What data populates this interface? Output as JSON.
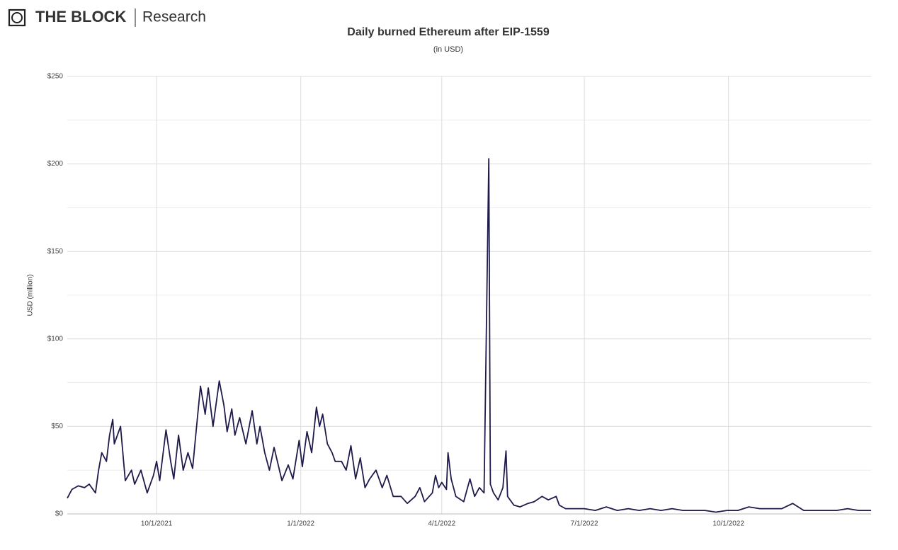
{
  "brand": {
    "name": "THE BLOCK",
    "section": "Research"
  },
  "chart_data": {
    "type": "line",
    "title": "Daily burned Ethereum after EIP-1559",
    "subtitle": "(in USD)",
    "y_label": "USD (million)",
    "color": "#1e1b4b",
    "grid": true,
    "xlim": [
      "2021-08-05",
      "2022-12-31"
    ],
    "xticks": [
      {
        "value": "2021-10-01",
        "label": "10/1/2021"
      },
      {
        "value": "2022-01-01",
        "label": "1/1/2022"
      },
      {
        "value": "2022-04-01",
        "label": "4/1/2022"
      },
      {
        "value": "2022-07-01",
        "label": "7/1/2022"
      },
      {
        "value": "2022-10-01",
        "label": "10/1/2022"
      }
    ],
    "ylim": [
      0,
      250
    ],
    "yticks": [
      {
        "value": 0,
        "label": "$0"
      },
      {
        "value": 50,
        "label": "$50"
      },
      {
        "value": 100,
        "label": "$100"
      },
      {
        "value": 150,
        "label": "$150"
      },
      {
        "value": 200,
        "label": "$200"
      },
      {
        "value": 250,
        "label": "$250"
      }
    ],
    "x": [
      "2021-08-05",
      "2021-08-08",
      "2021-08-12",
      "2021-08-16",
      "2021-08-19",
      "2021-08-23",
      "2021-08-25",
      "2021-08-27",
      "2021-08-30",
      "2021-09-01",
      "2021-09-03",
      "2021-09-04",
      "2021-09-08",
      "2021-09-11",
      "2021-09-15",
      "2021-09-17",
      "2021-09-21",
      "2021-09-25",
      "2021-09-29",
      "2021-10-01",
      "2021-10-03",
      "2021-10-07",
      "2021-10-10",
      "2021-10-12",
      "2021-10-15",
      "2021-10-18",
      "2021-10-21",
      "2021-10-24",
      "2021-10-26",
      "2021-10-29",
      "2021-11-01",
      "2021-11-03",
      "2021-11-06",
      "2021-11-10",
      "2021-11-13",
      "2021-11-15",
      "2021-11-18",
      "2021-11-20",
      "2021-11-23",
      "2021-11-27",
      "2021-12-01",
      "2021-12-04",
      "2021-12-06",
      "2021-12-09",
      "2021-12-12",
      "2021-12-15",
      "2021-12-20",
      "2021-12-24",
      "2021-12-27",
      "2021-12-31",
      "2022-01-02",
      "2022-01-05",
      "2022-01-08",
      "2022-01-11",
      "2022-01-13",
      "2022-01-15",
      "2022-01-18",
      "2022-01-21",
      "2022-01-23",
      "2022-01-27",
      "2022-01-30",
      "2022-02-02",
      "2022-02-05",
      "2022-02-08",
      "2022-02-11",
      "2022-02-14",
      "2022-02-18",
      "2022-02-22",
      "2022-02-25",
      "2022-03-01",
      "2022-03-06",
      "2022-03-10",
      "2022-03-15",
      "2022-03-18",
      "2022-03-21",
      "2022-03-26",
      "2022-03-28",
      "2022-03-30",
      "2022-04-01",
      "2022-04-04",
      "2022-04-05",
      "2022-04-07",
      "2022-04-10",
      "2022-04-15",
      "2022-04-19",
      "2022-04-22",
      "2022-04-25",
      "2022-04-28",
      "2022-05-01",
      "2022-05-02",
      "2022-05-04",
      "2022-05-07",
      "2022-05-10",
      "2022-05-12",
      "2022-05-13",
      "2022-05-17",
      "2022-05-21",
      "2022-05-26",
      "2022-05-30",
      "2022-06-04",
      "2022-06-08",
      "2022-06-13",
      "2022-06-15",
      "2022-06-19",
      "2022-06-25",
      "2022-07-01",
      "2022-07-08",
      "2022-07-15",
      "2022-07-22",
      "2022-07-29",
      "2022-08-05",
      "2022-08-12",
      "2022-08-19",
      "2022-08-26",
      "2022-09-02",
      "2022-09-09",
      "2022-09-16",
      "2022-09-23",
      "2022-09-30",
      "2022-10-07",
      "2022-10-14",
      "2022-10-21",
      "2022-10-28",
      "2022-11-04",
      "2022-11-11",
      "2022-11-18",
      "2022-11-25",
      "2022-12-02",
      "2022-12-09",
      "2022-12-16",
      "2022-12-23",
      "2022-12-31"
    ],
    "values": [
      9,
      14,
      16,
      15,
      17,
      12,
      25,
      35,
      30,
      45,
      54,
      40,
      50,
      19,
      25,
      17,
      25,
      12,
      22,
      30,
      19,
      48,
      30,
      20,
      45,
      25,
      35,
      26,
      45,
      73,
      57,
      72,
      50,
      76,
      62,
      47,
      60,
      45,
      55,
      40,
      59,
      40,
      50,
      35,
      25,
      38,
      19,
      28,
      20,
      42,
      27,
      47,
      35,
      61,
      50,
      57,
      40,
      35,
      30,
      30,
      25,
      39,
      20,
      32,
      15,
      20,
      25,
      15,
      22,
      10,
      10,
      6,
      10,
      15,
      7,
      12,
      22,
      15,
      18,
      14,
      35,
      20,
      10,
      7,
      20,
      10,
      15,
      12,
      203,
      17,
      12,
      8,
      15,
      36,
      10,
      5,
      4,
      6,
      7,
      10,
      8,
      10,
      5,
      3,
      3,
      3,
      2,
      4,
      2,
      3,
      2,
      3,
      2,
      3,
      2,
      2,
      2,
      1,
      2,
      2,
      4,
      3,
      3,
      3,
      6,
      2,
      2,
      2,
      2,
      3,
      2,
      2
    ]
  }
}
